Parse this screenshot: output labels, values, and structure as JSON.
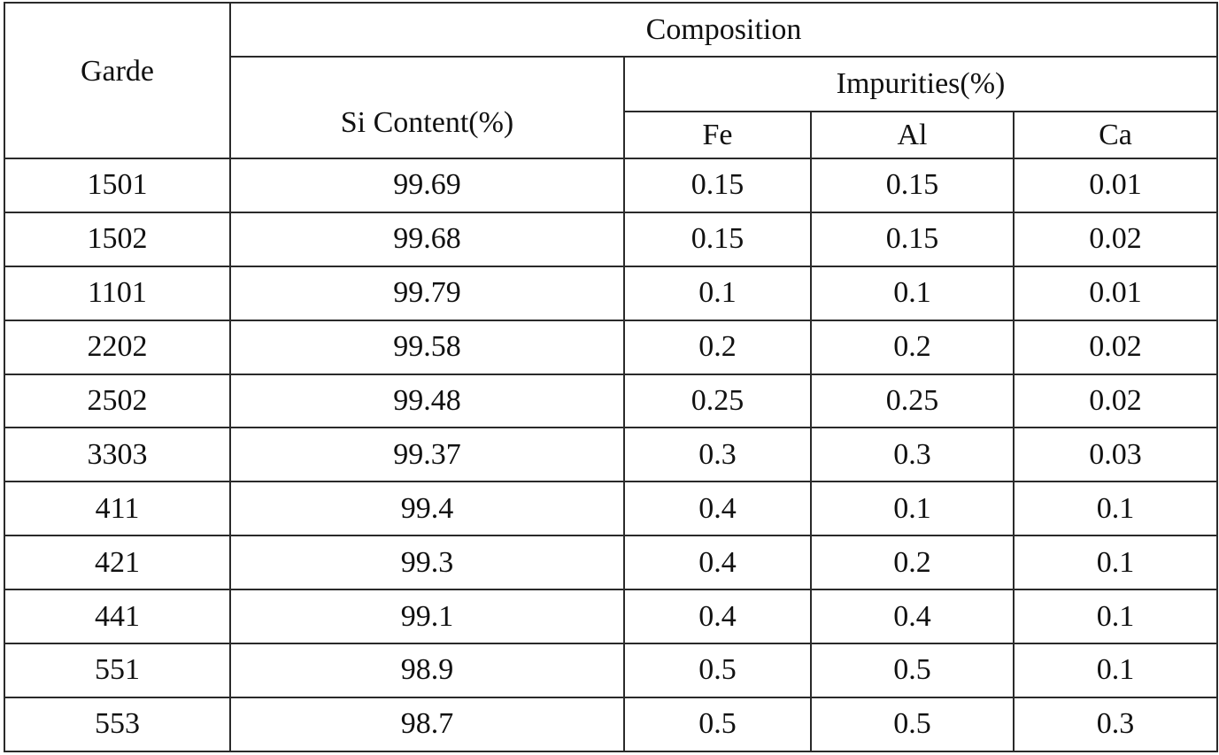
{
  "table": {
    "header": {
      "grade": "Garde",
      "composition": "Composition",
      "si_content": "Si Content(%)",
      "impurities": "Impurities(%)",
      "fe": "Fe",
      "al": "Al",
      "ca": "Ca"
    },
    "rows": [
      [
        "1501",
        "99.69",
        "0.15",
        "0.15",
        "0.01"
      ],
      [
        "1502",
        "99.68",
        "0.15",
        "0.15",
        "0.02"
      ],
      [
        "1101",
        "99.79",
        "0.1",
        "0.1",
        "0.01"
      ],
      [
        "2202",
        "99.58",
        "0.2",
        "0.2",
        "0.02"
      ],
      [
        "2502",
        "99.48",
        "0.25",
        "0.25",
        "0.02"
      ],
      [
        "3303",
        "99.37",
        "0.3",
        "0.3",
        "0.03"
      ],
      [
        "411",
        "99.4",
        "0.4",
        "0.1",
        "0.1"
      ],
      [
        "421",
        "99.3",
        "0.4",
        "0.2",
        "0.1"
      ],
      [
        "441",
        "99.1",
        "0.4",
        "0.4",
        "0.1"
      ],
      [
        "551",
        "98.9",
        "0.5",
        "0.5",
        "0.1"
      ],
      [
        "553",
        "98.7",
        "0.5",
        "0.5",
        "0.3"
      ]
    ]
  }
}
